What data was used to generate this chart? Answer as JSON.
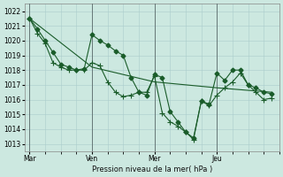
{
  "xlabel": "Pression niveau de la mer( hPa )",
  "bg_color": "#cce8e0",
  "grid_color": "#aacccc",
  "line_color": "#1a5c2a",
  "ylim": [
    1012.5,
    1022.5
  ],
  "yticks": [
    1013,
    1014,
    1015,
    1016,
    1017,
    1018,
    1019,
    1020,
    1021,
    1022
  ],
  "xtick_labels": [
    "Mar",
    "Ven",
    "Mer",
    "Jeu"
  ],
  "xtick_positions": [
    0,
    24,
    48,
    72
  ],
  "vline_positions": [
    0,
    24,
    48,
    72
  ],
  "xlim": [
    -2,
    96
  ],
  "series": [
    {
      "x": [
        0,
        3,
        6,
        9,
        12,
        15,
        18,
        21,
        24,
        27,
        30,
        33,
        36,
        39,
        42,
        45,
        48,
        51,
        54,
        57,
        60,
        63,
        66,
        69,
        72,
        75,
        78,
        81,
        84,
        87,
        90,
        93
      ],
      "y": [
        1021.5,
        1020.8,
        1020.0,
        1019.2,
        1018.4,
        1018.2,
        1018.0,
        1018.1,
        1020.4,
        1020.0,
        1019.7,
        1019.3,
        1019.0,
        1017.5,
        1016.5,
        1016.3,
        1017.7,
        1017.5,
        1015.2,
        1014.5,
        1013.8,
        1013.4,
        1015.9,
        1015.7,
        1017.8,
        1017.3,
        1018.0,
        1018.0,
        1017.0,
        1016.8,
        1016.5,
        1016.4
      ],
      "marker": "D",
      "ms": 2.5
    },
    {
      "x": [
        0,
        3,
        6,
        9,
        12,
        15,
        18,
        21,
        24,
        27,
        30,
        33,
        36,
        39,
        42,
        45,
        48,
        51,
        54,
        57,
        60,
        63,
        66,
        69,
        72,
        75,
        78,
        81,
        84,
        87,
        90,
        93
      ],
      "y": [
        1021.5,
        1020.5,
        1019.8,
        1018.5,
        1018.2,
        1018.0,
        1018.0,
        1018.0,
        1018.5,
        1018.3,
        1017.2,
        1016.5,
        1016.2,
        1016.3,
        1016.5,
        1016.5,
        1017.6,
        1015.1,
        1014.5,
        1014.2,
        1013.8,
        1013.3,
        1015.9,
        1015.6,
        1016.3,
        1016.8,
        1017.2,
        1017.8,
        1017.0,
        1016.5,
        1016.0,
        1016.1
      ],
      "marker": "P",
      "ms": 2.5
    },
    {
      "x": [
        0,
        24,
        48,
        72,
        93
      ],
      "y": [
        1021.5,
        1018.2,
        1017.2,
        1016.8,
        1016.5
      ],
      "marker": null,
      "ms": 0
    }
  ]
}
